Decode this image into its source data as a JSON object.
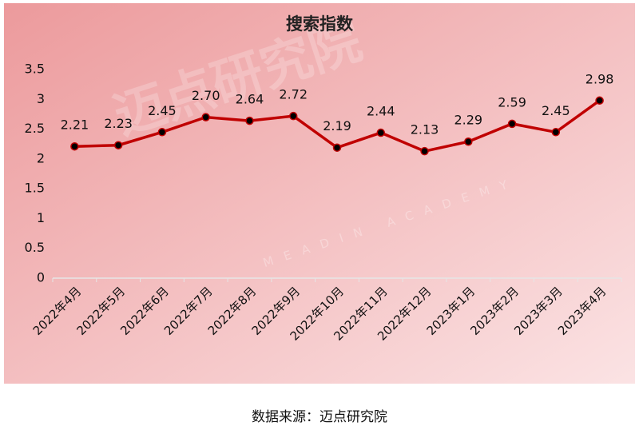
{
  "chart_data": {
    "type": "line",
    "title": "搜索指数",
    "categories": [
      "2022年4月",
      "2022年5月",
      "2022年6月",
      "2022年7月",
      "2022年8月",
      "2022年9月",
      "2022年10月",
      "2022年11月",
      "2022年12月",
      "2023年1月",
      "2023年2月",
      "2023年3月",
      "2023年4月"
    ],
    "series": [
      {
        "name": "搜索指数",
        "color": "#c00000",
        "values": [
          2.21,
          2.23,
          2.45,
          2.7,
          2.64,
          2.72,
          2.19,
          2.44,
          2.13,
          2.29,
          2.59,
          2.45,
          2.98
        ],
        "value_labels": [
          "2.21",
          "2.23",
          "2.45",
          "2.70",
          "2.64",
          "2.72",
          "2.19",
          "2.44",
          "2.13",
          "2.29",
          "2.59",
          "2.45",
          "2.98"
        ]
      }
    ],
    "ylim": [
      0,
      3.5
    ],
    "yticks": [
      0,
      0.5,
      1,
      1.5,
      2,
      2.5,
      3,
      3.5
    ],
    "grid": false,
    "legend": false,
    "marker_color": "#000000",
    "watermark": "迈点研究院",
    "watermark_sub": "MEADIN ACADEMY",
    "source": "数据来源：迈点研究院"
  }
}
